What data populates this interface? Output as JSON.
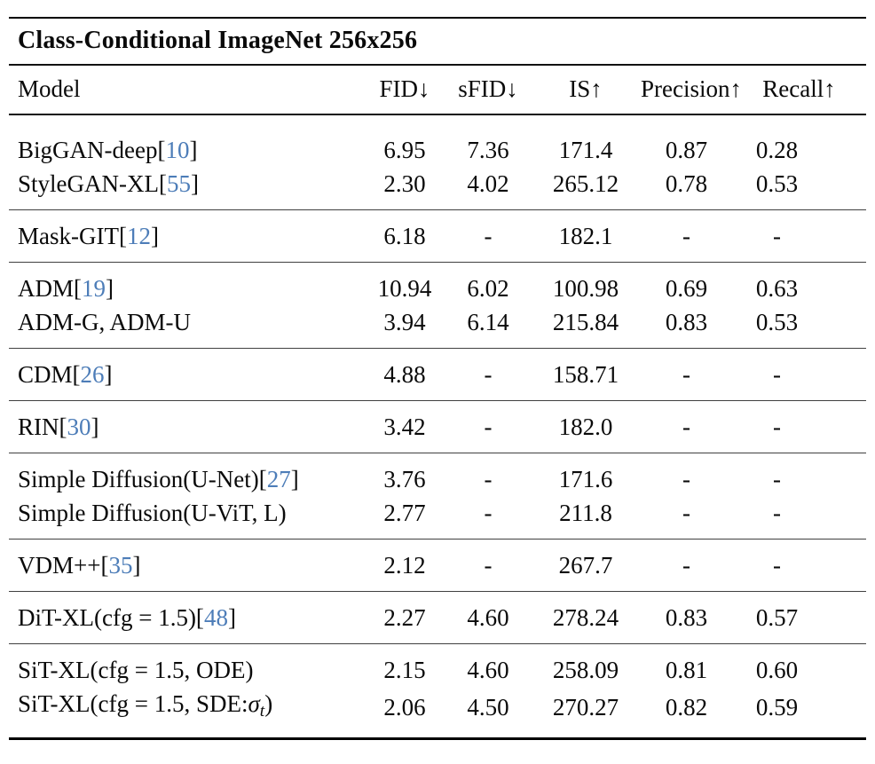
{
  "title": "Class-Conditional ImageNet 256x256",
  "colors": {
    "citation_link": "#4d7db8",
    "heavy_rule": "#000000",
    "light_rule": "#404040",
    "text": "#0a0a0a",
    "background": "#ffffff"
  },
  "columns": [
    {
      "label": "Model"
    },
    {
      "label": "FID↓"
    },
    {
      "label": "sFID↓"
    },
    {
      "label": "IS↑"
    },
    {
      "label": "Precision↑"
    },
    {
      "label": "Recall↑"
    }
  ],
  "groups": [
    {
      "rows": [
        {
          "model": [
            {
              "t": "BigGAN-deep["
            },
            {
              "t": "10",
              "cite": true
            },
            {
              "t": "]"
            }
          ],
          "values": [
            {
              "v": "6.95"
            },
            {
              "v": "7.36"
            },
            {
              "v": "171.4"
            },
            {
              "v": "0.87",
              "bold": true
            },
            {
              "v": "0.28"
            }
          ]
        },
        {
          "model": [
            {
              "t": "StyleGAN-XL["
            },
            {
              "t": "55",
              "cite": true
            },
            {
              "t": "]"
            }
          ],
          "values": [
            {
              "v": "2.30"
            },
            {
              "v": "4.02",
              "bold": true
            },
            {
              "v": "265.12"
            },
            {
              "v": "0.78"
            },
            {
              "v": "0.53"
            }
          ]
        }
      ]
    },
    {
      "rows": [
        {
          "model": [
            {
              "t": "Mask-GIT["
            },
            {
              "t": "12",
              "cite": true
            },
            {
              "t": "]"
            }
          ],
          "values": [
            {
              "v": "6.18"
            },
            {
              "v": "-"
            },
            {
              "v": "182.1"
            },
            {
              "v": "-"
            },
            {
              "v": "-"
            }
          ]
        }
      ]
    },
    {
      "rows": [
        {
          "model": [
            {
              "t": "ADM["
            },
            {
              "t": "19",
              "cite": true
            },
            {
              "t": "]"
            }
          ],
          "values": [
            {
              "v": "10.94"
            },
            {
              "v": "6.02"
            },
            {
              "v": "100.98"
            },
            {
              "v": "0.69"
            },
            {
              "v": "0.63"
            }
          ]
        },
        {
          "model": [
            {
              "t": "ADM-G, ADM-U"
            }
          ],
          "values": [
            {
              "v": "3.94"
            },
            {
              "v": "6.14"
            },
            {
              "v": "215.84"
            },
            {
              "v": "0.83"
            },
            {
              "v": "0.53"
            }
          ]
        }
      ]
    },
    {
      "rows": [
        {
          "model": [
            {
              "t": "CDM["
            },
            {
              "t": "26",
              "cite": true
            },
            {
              "t": "]"
            }
          ],
          "values": [
            {
              "v": "4.88"
            },
            {
              "v": "-"
            },
            {
              "v": "158.71"
            },
            {
              "v": "-"
            },
            {
              "v": "-"
            }
          ]
        }
      ]
    },
    {
      "rows": [
        {
          "model": [
            {
              "t": "RIN["
            },
            {
              "t": "30",
              "cite": true
            },
            {
              "t": "]"
            }
          ],
          "values": [
            {
              "v": "3.42"
            },
            {
              "v": "-"
            },
            {
              "v": "182.0"
            },
            {
              "v": "-"
            },
            {
              "v": "-"
            }
          ]
        }
      ]
    },
    {
      "rows": [
        {
          "model": [
            {
              "t": "Simple Diffusion(U-Net)["
            },
            {
              "t": "27",
              "cite": true
            },
            {
              "t": "]"
            }
          ],
          "values": [
            {
              "v": "3.76"
            },
            {
              "v": "-"
            },
            {
              "v": "171.6"
            },
            {
              "v": "-"
            },
            {
              "v": "-"
            }
          ]
        },
        {
          "model": [
            {
              "t": "Simple Diffusion(U-ViT, L)"
            }
          ],
          "values": [
            {
              "v": "2.77"
            },
            {
              "v": "-"
            },
            {
              "v": "211.8"
            },
            {
              "v": "-"
            },
            {
              "v": "-"
            }
          ]
        }
      ]
    },
    {
      "rows": [
        {
          "model": [
            {
              "t": "VDM++["
            },
            {
              "t": "35",
              "cite": true
            },
            {
              "t": "]"
            }
          ],
          "values": [
            {
              "v": "2.12"
            },
            {
              "v": "-"
            },
            {
              "v": "267.7"
            },
            {
              "v": "-"
            },
            {
              "v": "-"
            }
          ]
        }
      ]
    },
    {
      "rows": [
        {
          "model": [
            {
              "t": "DiT-XL(cfg = 1.5)["
            },
            {
              "t": "48",
              "cite": true
            },
            {
              "t": "]"
            }
          ],
          "values": [
            {
              "v": "2.27"
            },
            {
              "v": "4.60"
            },
            {
              "v": "278.24"
            },
            {
              "v": "0.83"
            },
            {
              "v": "0.57"
            }
          ]
        }
      ]
    },
    {
      "rows": [
        {
          "model": [
            {
              "t": "SiT-XL(cfg = 1.5, ODE)"
            }
          ],
          "bold": true,
          "values": [
            {
              "v": "2.15"
            },
            {
              "v": "4.60"
            },
            {
              "v": "258.09"
            },
            {
              "v": "0.81"
            },
            {
              "v": "0.60"
            }
          ]
        },
        {
          "model": [
            {
              "t": "SiT-XL(cfg = 1.5, SDE:"
            },
            {
              "t": "σ",
              "math": true
            },
            {
              "t": "t",
              "sub": true
            },
            {
              "t": ")"
            }
          ],
          "bold": true,
          "values": [
            {
              "v": "2.06",
              "bold": true
            },
            {
              "v": "4.50"
            },
            {
              "v": "270.27"
            },
            {
              "v": "0.82"
            },
            {
              "v": "0.59"
            }
          ]
        }
      ]
    }
  ]
}
